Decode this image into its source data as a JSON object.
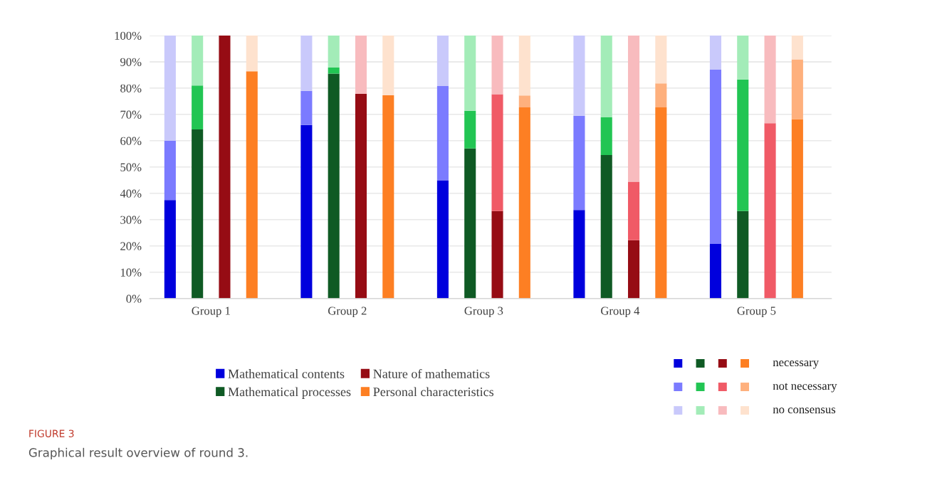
{
  "chart_data": {
    "type": "bar",
    "stacked": true,
    "categories": [
      null,
      null,
      null,
      null,
      "Group 1",
      null,
      null,
      null,
      null,
      null,
      null,
      null,
      null,
      null,
      "Group 2",
      null,
      null,
      null,
      null,
      null,
      null,
      null,
      null,
      null,
      "Group 3",
      null,
      null,
      null,
      null,
      null,
      null,
      null,
      null,
      null,
      "Group 4",
      null,
      null,
      null,
      null,
      null,
      null,
      null,
      null,
      null,
      "Group 5",
      null,
      null,
      null,
      null,
      null
    ],
    "series": [
      {
        "name": "Mathematical contents",
        "color": "#0000dd",
        "values": [
          null,
          37.5,
          null,
          null,
          null,
          null,
          null,
          null,
          null,
          null,
          null,
          66,
          null,
          null,
          null,
          null,
          null,
          null,
          null,
          null,
          null,
          45,
          null,
          null,
          null,
          null,
          null,
          null,
          null,
          null,
          null,
          33.7,
          null,
          null,
          null,
          null,
          null,
          null,
          null,
          null,
          null,
          20.8,
          null,
          null,
          null,
          null,
          null,
          null,
          null,
          null
        ]
      },
      {
        "color": "#7b7bff",
        "values": [
          null,
          22.5,
          null,
          null,
          null,
          null,
          null,
          null,
          null,
          null,
          null,
          13,
          null,
          null,
          null,
          null,
          null,
          null,
          null,
          null,
          null,
          35.8,
          null,
          null,
          null,
          null,
          null,
          null,
          null,
          null,
          null,
          35.8,
          null,
          null,
          null,
          null,
          null,
          null,
          null,
          null,
          null,
          66.2,
          null,
          null,
          null,
          null,
          null,
          null,
          null,
          null
        ]
      },
      {
        "color": "#c9c9fb",
        "values": [
          null,
          40,
          null,
          null,
          null,
          null,
          null,
          null,
          null,
          null,
          null,
          21,
          null,
          null,
          null,
          null,
          null,
          null,
          null,
          null,
          null,
          19.2,
          null,
          null,
          null,
          null,
          null,
          null,
          null,
          null,
          null,
          30.5,
          null,
          null,
          null,
          null,
          null,
          null,
          null,
          null,
          null,
          13,
          null,
          null,
          null,
          null,
          null,
          null,
          null,
          null
        ]
      },
      {
        "name": "Mathematical processes",
        "color": "#0f5a24",
        "values": [
          null,
          null,
          null,
          64.3,
          null,
          null,
          null,
          null,
          null,
          null,
          null,
          null,
          null,
          85.5,
          null,
          null,
          null,
          null,
          null,
          null,
          null,
          null,
          null,
          57.1,
          null,
          null,
          null,
          null,
          null,
          null,
          null,
          null,
          null,
          54.6,
          null,
          null,
          null,
          null,
          null,
          null,
          null,
          null,
          null,
          33.3,
          null,
          null,
          null,
          null,
          null,
          null
        ]
      },
      {
        "color": "#22c553",
        "values": [
          null,
          null,
          null,
          16.7,
          null,
          null,
          null,
          null,
          null,
          null,
          null,
          null,
          null,
          2.3,
          null,
          null,
          null,
          null,
          null,
          null,
          null,
          null,
          null,
          14.3,
          null,
          null,
          null,
          null,
          null,
          null,
          null,
          null,
          null,
          14.3,
          null,
          null,
          null,
          null,
          null,
          null,
          null,
          null,
          null,
          50,
          null,
          null,
          null,
          null,
          null,
          null
        ]
      },
      {
        "color": "#a3ecb8",
        "values": [
          null,
          null,
          null,
          19,
          null,
          null,
          null,
          null,
          null,
          null,
          null,
          null,
          null,
          12.2,
          null,
          null,
          null,
          null,
          null,
          null,
          null,
          null,
          null,
          28.6,
          null,
          null,
          null,
          null,
          null,
          null,
          null,
          null,
          null,
          31.1,
          null,
          null,
          null,
          null,
          null,
          null,
          null,
          null,
          null,
          16.7,
          null,
          null,
          null,
          null,
          null,
          null
        ]
      },
      {
        "name": "Nature of mathematics",
        "color": "#960c14",
        "values": [
          null,
          null,
          null,
          null,
          null,
          100,
          null,
          null,
          null,
          null,
          null,
          null,
          null,
          null,
          null,
          77.8,
          null,
          null,
          null,
          null,
          null,
          null,
          null,
          null,
          null,
          33.3,
          null,
          null,
          null,
          null,
          null,
          null,
          null,
          null,
          null,
          22.2,
          null,
          null,
          null,
          null,
          null,
          null,
          null,
          null,
          null,
          0,
          null,
          null,
          null,
          null
        ]
      },
      {
        "color": "#f05a66",
        "values": [
          null,
          null,
          null,
          null,
          null,
          0,
          null,
          null,
          null,
          null,
          null,
          null,
          null,
          null,
          null,
          0,
          null,
          null,
          null,
          null,
          null,
          null,
          null,
          null,
          null,
          44.4,
          null,
          null,
          null,
          null,
          null,
          null,
          null,
          null,
          null,
          22.2,
          null,
          null,
          null,
          null,
          null,
          null,
          null,
          null,
          null,
          66.7,
          null,
          null,
          null,
          null
        ]
      },
      {
        "color": "#f8bbbe",
        "values": [
          null,
          null,
          null,
          null,
          null,
          0,
          null,
          null,
          null,
          null,
          null,
          null,
          null,
          null,
          null,
          22.2,
          null,
          null,
          null,
          null,
          null,
          null,
          null,
          null,
          null,
          22.3,
          null,
          null,
          null,
          null,
          null,
          null,
          null,
          null,
          null,
          55.6,
          null,
          null,
          null,
          null,
          null,
          null,
          null,
          null,
          null,
          33.3,
          null,
          null,
          null,
          null
        ]
      },
      {
        "name": "Personal characteristics",
        "color": "#fd7f23",
        "values": [
          null,
          null,
          null,
          null,
          null,
          null,
          null,
          86.4,
          null,
          null,
          null,
          null,
          null,
          null,
          null,
          null,
          null,
          77.3,
          null,
          null,
          null,
          null,
          null,
          null,
          null,
          null,
          null,
          72.7,
          null,
          null,
          null,
          null,
          null,
          null,
          null,
          null,
          null,
          72.7,
          null,
          null,
          null,
          null,
          null,
          null,
          null,
          null,
          null,
          68.2,
          null,
          null
        ]
      },
      {
        "color": "#feb07d",
        "values": [
          null,
          null,
          null,
          null,
          null,
          null,
          null,
          0,
          null,
          null,
          null,
          null,
          null,
          null,
          null,
          null,
          null,
          0,
          null,
          null,
          null,
          null,
          null,
          null,
          null,
          null,
          null,
          4.5,
          null,
          null,
          null,
          null,
          null,
          null,
          null,
          null,
          null,
          9.1,
          null,
          null,
          null,
          null,
          null,
          null,
          null,
          null,
          null,
          22.7,
          null,
          null
        ]
      },
      {
        "color": "#fee2ce",
        "values": [
          null,
          null,
          null,
          null,
          null,
          null,
          null,
          13.6,
          null,
          null,
          null,
          null,
          null,
          null,
          null,
          null,
          null,
          22.7,
          null,
          null,
          null,
          null,
          null,
          null,
          null,
          null,
          null,
          22.8,
          null,
          null,
          null,
          null,
          null,
          null,
          null,
          null,
          null,
          18.2,
          null,
          null,
          null,
          null,
          null,
          null,
          null,
          null,
          null,
          9.1,
          null,
          null
        ]
      }
    ],
    "ylim": [
      0,
      100
    ],
    "yticks": [
      {
        "value": 0,
        "label": "0%"
      },
      {
        "value": 10,
        "label": "10%"
      },
      {
        "value": 20,
        "label": "20%"
      },
      {
        "value": 30,
        "label": "30%"
      },
      {
        "value": 40,
        "label": "40%"
      },
      {
        "value": 50,
        "label": "50%"
      },
      {
        "value": 60,
        "label": "60%"
      },
      {
        "value": 70,
        "label": "70%"
      },
      {
        "value": 80,
        "label": "80%"
      },
      {
        "value": 90,
        "label": "90%"
      },
      {
        "value": 100,
        "label": "100%"
      }
    ],
    "grid": "y",
    "legend": "bottom",
    "annotations": [
      "necessary",
      "not necessary",
      "no consensus",
      "FIGURE 3",
      "Graphical result overview of round 3."
    ]
  }
}
